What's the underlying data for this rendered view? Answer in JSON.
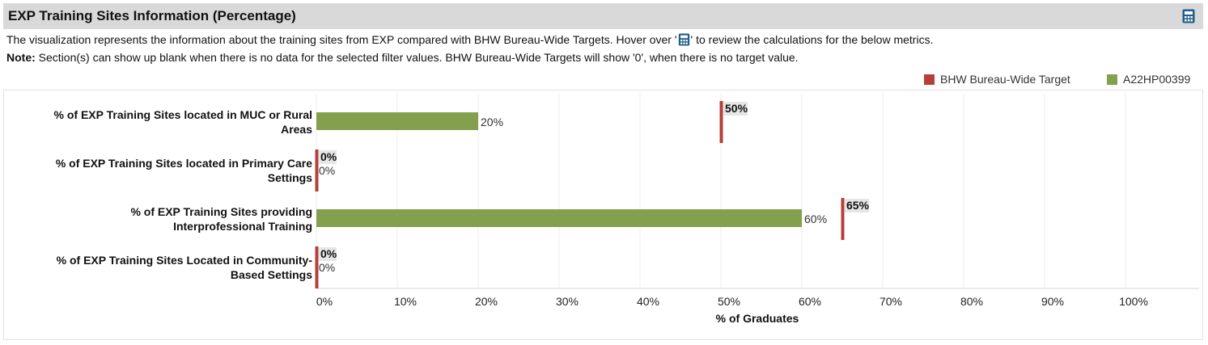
{
  "header": {
    "title": "EXP Training Sites Information (Percentage)",
    "calculator_icon": "calculator-icon"
  },
  "description": {
    "before_icon": "The visualization represents the information about the training sites from EXP compared with BHW Bureau-Wide Targets. Hover over '",
    "after_icon": "' to review the calculations for the below metrics.",
    "note_label": "Note:",
    "note_text": "Section(s) can show up blank when there is no data for the selected filter values. BHW Bureau-Wide Targets will show '0', when there is no target value."
  },
  "colors": {
    "target": "#b5403a",
    "actual": "#83a04e",
    "header_bg": "#d9d9d9",
    "icon": "#1f5f8b",
    "label_bg": "#e6e6e6"
  },
  "chart_data": {
    "type": "bar",
    "orientation": "horizontal",
    "xlabel": "% of Graduates",
    "xlim": [
      0,
      100
    ],
    "xticks": [
      "0%",
      "10%",
      "20%",
      "30%",
      "40%",
      "50%",
      "60%",
      "70%",
      "80%",
      "90%",
      "100%"
    ],
    "legend": {
      "position": "top-right",
      "entries": [
        "BHW Bureau-Wide Target",
        "A22HP00399"
      ]
    },
    "categories": [
      [
        "% of EXP Training Sites located in MUC or Rural",
        "Areas"
      ],
      [
        "% of EXP Training Sites located in Primary Care",
        "Settings"
      ],
      [
        "% of EXP Training Sites providing",
        "Interprofessional Training"
      ],
      [
        "% of EXP Training Sites Located in Community-",
        "Based Settings"
      ]
    ],
    "series": [
      {
        "name": "BHW Bureau-Wide Target",
        "values": [
          50,
          0,
          65,
          0
        ],
        "labels": [
          "50%",
          "0%",
          "65%",
          "0%"
        ]
      },
      {
        "name": "A22HP00399",
        "values": [
          20,
          0,
          60,
          0
        ],
        "labels": [
          "20%",
          "0%",
          "60%",
          "0%"
        ]
      }
    ]
  }
}
